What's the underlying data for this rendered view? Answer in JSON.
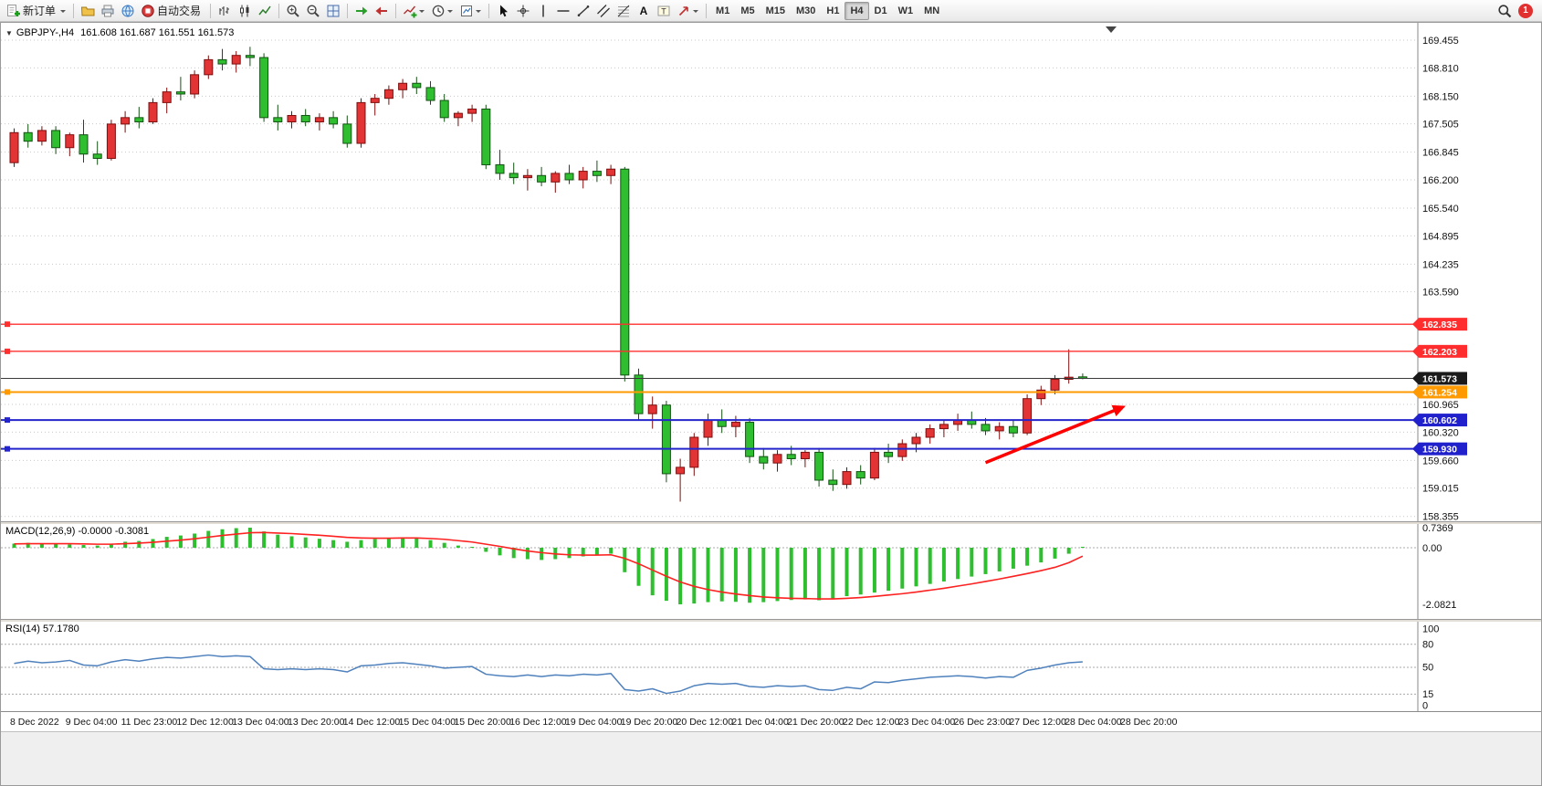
{
  "colors": {
    "up_candle": "#E23434",
    "up_border": "#7E0E0E",
    "down_candle": "#2FBE2F",
    "down_border": "#145214",
    "grid": "#c9c9c9",
    "macd_histogram": "#2FBE2F",
    "macd_signal": "#FF2020",
    "rsi_line": "#4f81bd",
    "arrow": "#FF0000",
    "badge_text": "#ffffff"
  },
  "toolbar": {
    "new_order": "新订单",
    "auto_trading": "自动交易",
    "timeframes": [
      "M1",
      "M5",
      "M15",
      "M30",
      "H1",
      "H4",
      "D1",
      "W1",
      "MN"
    ],
    "active_timeframe": "H4",
    "notification_count": "1"
  },
  "chart": {
    "symbol_title": "GBPJPY-,H4",
    "ohlc_text": "161.608 161.687 161.551 161.573",
    "price_axis_labels": [
      "169.455",
      "168.810",
      "168.150",
      "167.505",
      "166.845",
      "166.200",
      "165.540",
      "164.895",
      "164.235",
      "163.590",
      "160.965",
      "160.320",
      "159.660",
      "159.015",
      "158.355"
    ],
    "levels": [
      {
        "price": 162.835,
        "label": "162.835",
        "color": "#FF3030",
        "badge": "#FF2D2D",
        "width": 1.4,
        "handle": true
      },
      {
        "price": 162.203,
        "label": "162.203",
        "color": "#FF3030",
        "badge": "#FF2D2D",
        "width": 1.4,
        "handle": true
      },
      {
        "price": 161.573,
        "label": "161.573",
        "color": "#3a3a3a",
        "badge": "#1a1a1a",
        "width": 1,
        "handle": false
      },
      {
        "price": 161.254,
        "label": "161.254",
        "color": "#FF9900",
        "badge": "#FF9900",
        "width": 2,
        "handle": true
      },
      {
        "price": 160.602,
        "label": "160.602",
        "color": "#2525CC",
        "badge": "#2020CC",
        "width": 2,
        "handle": true
      },
      {
        "price": 159.93,
        "label": "159.930",
        "color": "#2525CC",
        "badge": "#2020CC",
        "width": 2,
        "handle": true
      }
    ],
    "candles": [
      [
        166.6,
        167.4,
        166.5,
        167.3
      ],
      [
        167.3,
        167.5,
        166.95,
        167.1
      ],
      [
        167.1,
        167.45,
        167.0,
        167.35
      ],
      [
        167.35,
        167.45,
        166.8,
        166.95
      ],
      [
        166.95,
        167.3,
        166.75,
        167.25
      ],
      [
        167.25,
        167.6,
        166.6,
        166.8
      ],
      [
        166.8,
        167.1,
        166.55,
        166.7
      ],
      [
        166.7,
        167.6,
        166.65,
        167.5
      ],
      [
        167.5,
        167.8,
        167.3,
        167.65
      ],
      [
        167.65,
        167.9,
        167.4,
        167.55
      ],
      [
        167.55,
        168.1,
        167.5,
        168.0
      ],
      [
        168.0,
        168.35,
        167.75,
        168.25
      ],
      [
        168.25,
        168.6,
        168.05,
        168.2
      ],
      [
        168.2,
        168.75,
        168.1,
        168.65
      ],
      [
        168.65,
        169.1,
        168.55,
        169.0
      ],
      [
        169.0,
        169.25,
        168.75,
        168.9
      ],
      [
        168.9,
        169.2,
        168.7,
        169.1
      ],
      [
        169.1,
        169.3,
        168.85,
        169.05
      ],
      [
        169.05,
        169.15,
        167.55,
        167.65
      ],
      [
        167.65,
        167.95,
        167.35,
        167.55
      ],
      [
        167.55,
        167.8,
        167.4,
        167.7
      ],
      [
        167.7,
        167.85,
        167.45,
        167.55
      ],
      [
        167.55,
        167.75,
        167.35,
        167.65
      ],
      [
        167.65,
        167.8,
        167.4,
        167.5
      ],
      [
        167.5,
        167.7,
        166.95,
        167.05
      ],
      [
        167.05,
        168.1,
        166.95,
        168.0
      ],
      [
        168.0,
        168.2,
        167.7,
        168.1
      ],
      [
        168.1,
        168.4,
        167.95,
        168.3
      ],
      [
        168.3,
        168.55,
        168.1,
        168.45
      ],
      [
        168.45,
        168.6,
        168.2,
        168.35
      ],
      [
        168.35,
        168.5,
        167.95,
        168.05
      ],
      [
        168.05,
        168.2,
        167.55,
        167.65
      ],
      [
        167.65,
        167.8,
        167.45,
        167.75
      ],
      [
        167.75,
        167.95,
        167.55,
        167.85
      ],
      [
        167.85,
        167.95,
        166.45,
        166.55
      ],
      [
        166.55,
        166.9,
        166.2,
        166.35
      ],
      [
        166.35,
        166.6,
        166.1,
        166.25
      ],
      [
        166.25,
        166.45,
        165.95,
        166.3
      ],
      [
        166.3,
        166.5,
        166.05,
        166.15
      ],
      [
        166.15,
        166.4,
        165.9,
        166.35
      ],
      [
        166.35,
        166.55,
        166.1,
        166.2
      ],
      [
        166.2,
        166.5,
        166.0,
        166.4
      ],
      [
        166.4,
        166.65,
        166.15,
        166.3
      ],
      [
        166.3,
        166.55,
        166.1,
        166.45
      ],
      [
        166.45,
        166.5,
        161.5,
        161.65
      ],
      [
        161.65,
        161.8,
        160.6,
        160.75
      ],
      [
        160.75,
        161.15,
        160.4,
        160.95
      ],
      [
        160.95,
        161.05,
        159.15,
        159.35
      ],
      [
        159.35,
        159.7,
        158.7,
        159.5
      ],
      [
        159.5,
        160.3,
        159.3,
        160.2
      ],
      [
        160.2,
        160.75,
        160.0,
        160.6
      ],
      [
        160.6,
        160.85,
        160.3,
        160.45
      ],
      [
        160.45,
        160.7,
        160.2,
        160.55
      ],
      [
        160.55,
        160.65,
        159.6,
        159.75
      ],
      [
        159.75,
        159.95,
        159.45,
        159.6
      ],
      [
        159.6,
        159.9,
        159.4,
        159.8
      ],
      [
        159.8,
        160.0,
        159.55,
        159.7
      ],
      [
        159.7,
        159.9,
        159.5,
        159.85
      ],
      [
        159.85,
        159.95,
        159.05,
        159.2
      ],
      [
        159.2,
        159.45,
        158.95,
        159.1
      ],
      [
        159.1,
        159.5,
        159.0,
        159.4
      ],
      [
        159.4,
        159.55,
        159.1,
        159.25
      ],
      [
        159.25,
        159.95,
        159.2,
        159.85
      ],
      [
        159.85,
        160.05,
        159.6,
        159.75
      ],
      [
        159.75,
        160.15,
        159.65,
        160.05
      ],
      [
        160.05,
        160.3,
        159.85,
        160.2
      ],
      [
        160.2,
        160.5,
        160.05,
        160.4
      ],
      [
        160.4,
        160.6,
        160.2,
        160.5
      ],
      [
        160.5,
        160.75,
        160.35,
        160.6
      ],
      [
        160.6,
        160.8,
        160.4,
        160.5
      ],
      [
        160.5,
        160.65,
        160.25,
        160.35
      ],
      [
        160.35,
        160.55,
        160.15,
        160.45
      ],
      [
        160.45,
        160.6,
        160.2,
        160.3
      ],
      [
        160.3,
        161.2,
        160.25,
        161.1
      ],
      [
        161.1,
        161.4,
        160.95,
        161.3
      ],
      [
        161.3,
        161.65,
        161.2,
        161.55
      ],
      [
        161.55,
        162.25,
        161.45,
        161.6
      ],
      [
        161.608,
        161.687,
        161.551,
        161.573
      ]
    ],
    "arrow": {
      "x1_candle": 70,
      "price1": 159.61,
      "x2_candle": 80.1,
      "price2": 160.93
    }
  },
  "macd": {
    "label": "MACD(12,26,9) -0.0000 -0.3081",
    "scale_labels": [
      "0.7369",
      "0.00",
      "-2.0821"
    ],
    "scale_values": [
      0.7369,
      0,
      -2.0821
    ],
    "histogram": [
      0.15,
      0.18,
      0.14,
      0.16,
      0.12,
      0.1,
      0.08,
      0.15,
      0.22,
      0.25,
      0.32,
      0.4,
      0.45,
      0.52,
      0.62,
      0.68,
      0.72,
      0.7369,
      0.6,
      0.48,
      0.42,
      0.38,
      0.33,
      0.28,
      0.22,
      0.28,
      0.32,
      0.35,
      0.38,
      0.36,
      0.28,
      0.18,
      0.08,
      -0.02,
      -0.15,
      -0.28,
      -0.38,
      -0.42,
      -0.45,
      -0.42,
      -0.38,
      -0.32,
      -0.28,
      -0.22,
      -0.9,
      -1.4,
      -1.75,
      -1.95,
      -2.0821,
      -2.05,
      -2.0,
      -1.97,
      -1.99,
      -2.02,
      -2.0,
      -1.96,
      -1.92,
      -1.9,
      -1.93,
      -1.88,
      -1.78,
      -1.72,
      -1.65,
      -1.58,
      -1.5,
      -1.42,
      -1.33,
      -1.24,
      -1.15,
      -1.06,
      -0.97,
      -0.87,
      -0.77,
      -0.66,
      -0.54,
      -0.4,
      -0.22,
      0.0
    ],
    "signal": [
      0.14,
      0.15,
      0.15,
      0.15,
      0.15,
      0.14,
      0.13,
      0.13,
      0.15,
      0.17,
      0.2,
      0.24,
      0.28,
      0.33,
      0.39,
      0.45,
      0.5,
      0.55,
      0.56,
      0.54,
      0.52,
      0.49,
      0.46,
      0.42,
      0.38,
      0.36,
      0.35,
      0.35,
      0.36,
      0.36,
      0.34,
      0.31,
      0.26,
      0.21,
      0.13,
      0.05,
      -0.04,
      -0.12,
      -0.18,
      -0.23,
      -0.26,
      -0.27,
      -0.27,
      -0.26,
      -0.39,
      -0.59,
      -0.82,
      -1.05,
      -1.26,
      -1.42,
      -1.54,
      -1.63,
      -1.7,
      -1.76,
      -1.81,
      -1.84,
      -1.86,
      -1.87,
      -1.88,
      -1.88,
      -1.86,
      -1.83,
      -1.79,
      -1.74,
      -1.69,
      -1.63,
      -1.56,
      -1.49,
      -1.41,
      -1.33,
      -1.24,
      -1.15,
      -1.05,
      -0.95,
      -0.84,
      -0.72,
      -0.55,
      -0.3081
    ]
  },
  "rsi": {
    "label": "RSI(14) 57.1780",
    "scale_labels": [
      "100",
      "80",
      "50",
      "15",
      "0"
    ],
    "scale_values": [
      100,
      80,
      50,
      15,
      0
    ],
    "level_lines": [
      80,
      50,
      15
    ],
    "values": [
      55,
      58,
      56,
      57,
      59,
      53,
      52,
      57,
      60,
      58,
      61,
      63,
      62,
      64,
      66,
      64,
      65,
      64,
      48,
      47,
      48,
      47,
      48,
      47,
      44,
      52,
      53,
      55,
      56,
      54,
      52,
      49,
      50,
      51,
      41,
      39,
      38,
      40,
      38,
      40,
      39,
      41,
      40,
      42,
      21,
      19,
      22,
      16,
      19,
      26,
      29,
      28,
      29,
      25,
      24,
      26,
      25,
      26,
      21,
      20,
      24,
      22,
      31,
      30,
      33,
      35,
      37,
      38,
      39,
      38,
      36,
      38,
      37,
      46,
      49,
      53,
      56,
      57.18
    ]
  },
  "time_axis": [
    "8 Dec 2022",
    "9 Dec 04:00",
    "11 Dec 23:00",
    "12 Dec 12:00",
    "13 Dec 04:00",
    "13 Dec 20:00",
    "14 Dec 12:00",
    "15 Dec 04:00",
    "15 Dec 20:00",
    "16 Dec 12:00",
    "19 Dec 04:00",
    "19 Dec 20:00",
    "20 Dec 12:00",
    "21 Dec 04:00",
    "21 Dec 20:00",
    "22 Dec 12:00",
    "23 Dec 04:00",
    "26 Dec 23:00",
    "27 Dec 12:00",
    "28 Dec 04:00",
    "28 Dec 20:00"
  ]
}
